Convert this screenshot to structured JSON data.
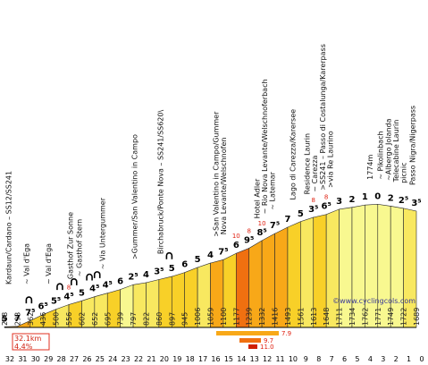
{
  "chart_data": {
    "type": "area",
    "xlabel": "",
    "ylabel": "",
    "x_ticks": [
      "32",
      "31",
      "30",
      "29",
      "28",
      "27",
      "26",
      "25",
      "24",
      "23",
      "22",
      "21",
      "20",
      "19",
      "18",
      "17",
      "16",
      "15",
      "14",
      "13",
      "12",
      "11",
      "10",
      "9",
      "8",
      "7",
      "6",
      "5",
      "4",
      "3",
      "2",
      "1",
      "0"
    ],
    "altitudes": [
      "288",
      "293",
      "362",
      "436",
      "500",
      "556",
      "602",
      "652",
      "695",
      "739",
      "797",
      "822",
      "860",
      "897",
      "945",
      "1006",
      "1059",
      "1100",
      "1177",
      "1239",
      "1332",
      "1416",
      "1493",
      "1561",
      "1613",
      "1648",
      "1711",
      "1734",
      "1762",
      "1771",
      "1749",
      "1722",
      "1689"
    ],
    "gradients": [
      "5",
      "7",
      "7⁵",
      "6⁵",
      "5⁵",
      "4⁵",
      "5",
      "4⁵",
      "4⁵",
      "6",
      "2⁵",
      "4",
      "3⁵",
      "5",
      "6",
      "5",
      "4",
      "7⁵",
      "6",
      "9⁵",
      "8⁵",
      "7⁵",
      "7",
      "5",
      "3⁵",
      "6⁵",
      "3",
      "2",
      "1",
      "0",
      "2",
      "2⁵",
      "3⁵"
    ],
    "max_gradients": [
      "",
      "",
      "",
      "",
      "",
      "8",
      "",
      "",
      "",
      "",
      "",
      "",
      "",
      "",
      "",
      "",
      "",
      "",
      "10",
      "8",
      "10",
      "",
      "",
      "",
      "8",
      "8",
      "",
      "",
      "",
      "",
      "",
      "",
      ""
    ],
    "labels": [
      {
        "km": 31.7,
        "text": "Kardaun/Cardano – SS12/SS241"
      },
      {
        "km": 30.3,
        "text": "~ Val d'Ega"
      },
      {
        "km": 28.6,
        "text": "~ Val d'Ega"
      },
      {
        "km": 26.9,
        "text": "Gasthof Zur Sonne"
      },
      {
        "km": 26.2,
        "text": "~ Gasthof Stern"
      },
      {
        "km": 24.4,
        "text": "~ Via Untergummer"
      },
      {
        "km": 21.9,
        "text": ">Gummer/San Valentino in Campo"
      },
      {
        "km": 19.9,
        "text": "Birchabruck/Ponte Nova – SS241/SS620\\"
      },
      {
        "km": 15.6,
        "text": ">San Valentino in Campo/Gummer"
      },
      {
        "km": 15.0,
        "text": "Nova Levante/Welschnofen"
      },
      {
        "km": 12.4,
        "text": "Hotel Adler"
      },
      {
        "km": 11.8,
        "text": "~ Rio Nova Levante/Welschnoferbach"
      },
      {
        "km": 11.2,
        "text": "~ Latemar"
      },
      {
        "km": 9.6,
        "text": "Lago di Carezza/Karersee"
      },
      {
        "km": 8.5,
        "text": "Residence Laurin"
      },
      {
        "km": 7.9,
        "text": "~ Carezza"
      },
      {
        "km": 7.3,
        "text": ">SS241 – Passo di Costalunga/Karerpass"
      },
      {
        "km": 6.7,
        "text": ">via Re Laurino"
      },
      {
        "km": 3.6,
        "text": "1774m"
      },
      {
        "km": 2.8,
        "text": "~ Pikolinbach"
      },
      {
        "km": 2.2,
        "text": "~Albergo Jolanda"
      },
      {
        "km": 1.6,
        "text": "Telecabine Laurin"
      },
      {
        "km": 1.0,
        "text": "picnic"
      },
      {
        "km": 0.3,
        "text": "Passo Nigra/Nigerpass"
      }
    ],
    "hairpins_km": [
      30.1,
      27.7,
      26.6,
      25.4,
      24.8,
      19.2
    ],
    "summary": {
      "distance": "32.1km",
      "average": "4.4%"
    },
    "max_bars": [
      {
        "label": "7.9"
      },
      {
        "label": "9.7"
      },
      {
        "label": "11.0"
      }
    ],
    "watermark": "©www.cyclingcols.com"
  }
}
